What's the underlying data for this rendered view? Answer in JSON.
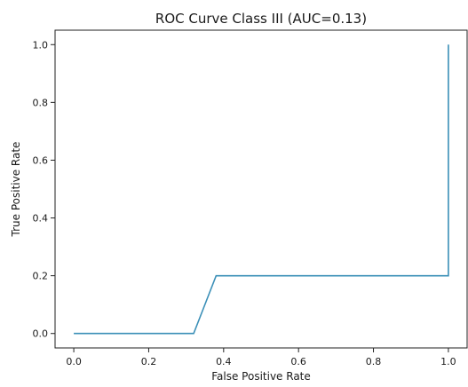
{
  "chart_data": {
    "type": "line",
    "title": "ROC Curve Class III (AUC=0.13)",
    "xlabel": "False Positive Rate",
    "ylabel": "True Positive Rate",
    "xlim": [
      -0.05,
      1.05
    ],
    "ylim": [
      -0.05,
      1.05
    ],
    "xticks": [
      0.0,
      0.2,
      0.4,
      0.6,
      0.8,
      1.0
    ],
    "yticks": [
      0.0,
      0.2,
      0.4,
      0.6,
      0.8,
      1.0
    ],
    "xtick_labels": [
      "0.0",
      "0.2",
      "0.4",
      "0.6",
      "0.8",
      "1.0"
    ],
    "ytick_labels": [
      "0.0",
      "0.2",
      "0.4",
      "0.6",
      "0.8",
      "1.0"
    ],
    "grid": false,
    "series": [
      {
        "color": "#3a8fb7",
        "x": [
          0.0,
          0.32,
          0.38,
          1.0,
          1.0
        ],
        "y": [
          0.0,
          0.0,
          0.2,
          0.2,
          1.0
        ]
      }
    ]
  }
}
